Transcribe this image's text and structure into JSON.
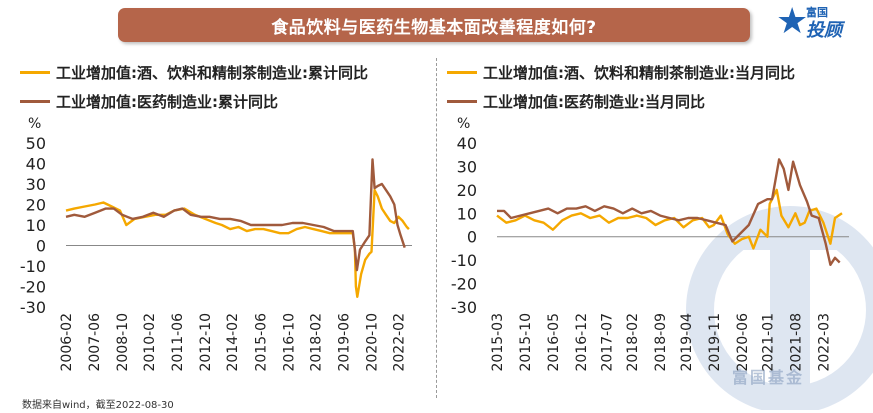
{
  "title": "食品饮料与医药生物基本面改善程度如何?",
  "brand": {
    "top": "富国",
    "main": "投顾",
    "watermark": "富国基金"
  },
  "source": "数据来自wind，截至2022-08-30",
  "colors": {
    "orange": "#f5a800",
    "brown": "#a05a3c",
    "banner": "#b5654a"
  },
  "chart_data": [
    {
      "type": "line",
      "ylabel": "%",
      "ylim": [
        -30,
        50
      ],
      "yticks": [
        -30,
        -20,
        -10,
        0,
        10,
        20,
        30,
        40,
        50
      ],
      "xlim": [
        2006.1,
        2022.75
      ],
      "xticks": [
        {
          "label": "2006-02",
          "pos": 2006.1
        },
        {
          "label": "2007-06",
          "pos": 2007.45
        },
        {
          "label": "2008-10",
          "pos": 2008.8
        },
        {
          "label": "2010-02",
          "pos": 2010.1
        },
        {
          "label": "2011-06",
          "pos": 2011.45
        },
        {
          "label": "2012-10",
          "pos": 2012.8
        },
        {
          "label": "2014-02",
          "pos": 2014.1
        },
        {
          "label": "2015-06",
          "pos": 2015.45
        },
        {
          "label": "2016-10",
          "pos": 2016.8
        },
        {
          "label": "2018-02",
          "pos": 2018.1
        },
        {
          "label": "2019-06",
          "pos": 2019.45
        },
        {
          "label": "2020-10",
          "pos": 2020.8
        },
        {
          "label": "2022-02",
          "pos": 2022.1
        }
      ],
      "series": [
        {
          "name": "工业增加值:酒、饮料和精制茶制造业:累计同比",
          "color": "#f5a800",
          "points": [
            [
              2006.1,
              17
            ],
            [
              2006.5,
              18
            ],
            [
              2007.0,
              19
            ],
            [
              2007.5,
              20
            ],
            [
              2007.9,
              21
            ],
            [
              2008.3,
              19
            ],
            [
              2008.7,
              17
            ],
            [
              2009.0,
              10
            ],
            [
              2009.4,
              13
            ],
            [
              2009.9,
              14
            ],
            [
              2010.4,
              15
            ],
            [
              2010.9,
              15
            ],
            [
              2011.3,
              17
            ],
            [
              2011.8,
              18
            ],
            [
              2012.3,
              15
            ],
            [
              2012.8,
              13
            ],
            [
              2013.3,
              11
            ],
            [
              2013.6,
              10
            ],
            [
              2014.0,
              8
            ],
            [
              2014.4,
              9
            ],
            [
              2014.8,
              7
            ],
            [
              2015.2,
              8
            ],
            [
              2015.6,
              8
            ],
            [
              2016.0,
              7
            ],
            [
              2016.4,
              6
            ],
            [
              2016.8,
              6
            ],
            [
              2017.2,
              8
            ],
            [
              2017.6,
              9
            ],
            [
              2018.0,
              8
            ],
            [
              2018.4,
              7
            ],
            [
              2018.8,
              6
            ],
            [
              2019.2,
              6
            ],
            [
              2019.6,
              6
            ],
            [
              2019.9,
              6
            ],
            [
              2020.0,
              -2
            ],
            [
              2020.05,
              -20
            ],
            [
              2020.12,
              -25
            ],
            [
              2020.3,
              -14
            ],
            [
              2020.5,
              -7
            ],
            [
              2020.7,
              -4
            ],
            [
              2020.8,
              -3
            ],
            [
              2020.95,
              27
            ],
            [
              2021.1,
              24
            ],
            [
              2021.3,
              18
            ],
            [
              2021.5,
              15
            ],
            [
              2021.7,
              12
            ],
            [
              2021.9,
              11
            ],
            [
              2022.1,
              14
            ],
            [
              2022.3,
              12
            ],
            [
              2022.5,
              9
            ],
            [
              2022.6,
              8
            ]
          ]
        },
        {
          "name": "工业增加值:医药制造业:累计同比",
          "color": "#a05a3c",
          "points": [
            [
              2006.1,
              14
            ],
            [
              2006.5,
              15
            ],
            [
              2007.0,
              14
            ],
            [
              2007.5,
              16
            ],
            [
              2008.0,
              18
            ],
            [
              2008.4,
              18
            ],
            [
              2008.8,
              15
            ],
            [
              2009.3,
              13
            ],
            [
              2009.8,
              14
            ],
            [
              2010.3,
              16
            ],
            [
              2010.8,
              14
            ],
            [
              2011.3,
              17
            ],
            [
              2011.7,
              18
            ],
            [
              2012.1,
              15
            ],
            [
              2012.6,
              14
            ],
            [
              2013.0,
              14
            ],
            [
              2013.5,
              13
            ],
            [
              2014.0,
              13
            ],
            [
              2014.5,
              12
            ],
            [
              2015.0,
              10
            ],
            [
              2015.5,
              10
            ],
            [
              2016.0,
              10
            ],
            [
              2016.5,
              10
            ],
            [
              2017.0,
              11
            ],
            [
              2017.5,
              11
            ],
            [
              2018.0,
              10
            ],
            [
              2018.5,
              9
            ],
            [
              2019.0,
              7
            ],
            [
              2019.5,
              7
            ],
            [
              2019.9,
              7
            ],
            [
              2020.0,
              -2
            ],
            [
              2020.1,
              -12
            ],
            [
              2020.25,
              -2
            ],
            [
              2020.5,
              2
            ],
            [
              2020.7,
              5
            ],
            [
              2020.85,
              42
            ],
            [
              2020.95,
              28
            ],
            [
              2021.1,
              29
            ],
            [
              2021.3,
              30
            ],
            [
              2021.5,
              27
            ],
            [
              2021.7,
              24
            ],
            [
              2021.9,
              20
            ],
            [
              2022.05,
              10
            ],
            [
              2022.2,
              5
            ],
            [
              2022.4,
              -1
            ]
          ]
        }
      ]
    },
    {
      "type": "line",
      "ylabel": "%",
      "ylim": [
        -30,
        40
      ],
      "yticks": [
        -30,
        -20,
        -10,
        0,
        10,
        20,
        30,
        40
      ],
      "xlim": [
        2015.2,
        2022.75
      ],
      "xticks": [
        {
          "label": "2015-03",
          "pos": 2015.2
        },
        {
          "label": "2015-10",
          "pos": 2015.8
        },
        {
          "label": "2016-05",
          "pos": 2016.4
        },
        {
          "label": "2016-12",
          "pos": 2017.0
        },
        {
          "label": "2017-07",
          "pos": 2017.55
        },
        {
          "label": "2018-02",
          "pos": 2018.1
        },
        {
          "label": "2018-09",
          "pos": 2018.7
        },
        {
          "label": "2019-04",
          "pos": 2019.25
        },
        {
          "label": "2019-11",
          "pos": 2019.85
        },
        {
          "label": "2020-06",
          "pos": 2020.45
        },
        {
          "label": "2021-01",
          "pos": 2021.0
        },
        {
          "label": "2021-08",
          "pos": 2021.6
        },
        {
          "label": "2022-03",
          "pos": 2022.2
        }
      ],
      "series": [
        {
          "name": "工业增加值:酒、饮料和精制茶制造业:当月同比",
          "color": "#f5a800",
          "points": [
            [
              2015.2,
              9
            ],
            [
              2015.4,
              6
            ],
            [
              2015.6,
              7
            ],
            [
              2015.8,
              9
            ],
            [
              2016.0,
              7
            ],
            [
              2016.2,
              6
            ],
            [
              2016.4,
              3
            ],
            [
              2016.6,
              7
            ],
            [
              2016.8,
              9
            ],
            [
              2017.0,
              10
            ],
            [
              2017.2,
              8
            ],
            [
              2017.4,
              9
            ],
            [
              2017.6,
              6
            ],
            [
              2017.8,
              8
            ],
            [
              2018.0,
              8
            ],
            [
              2018.2,
              9
            ],
            [
              2018.4,
              8
            ],
            [
              2018.6,
              5
            ],
            [
              2018.8,
              7
            ],
            [
              2019.0,
              8
            ],
            [
              2019.2,
              4
            ],
            [
              2019.4,
              7
            ],
            [
              2019.6,
              8
            ],
            [
              2019.75,
              4
            ],
            [
              2019.85,
              5
            ],
            [
              2020.0,
              9
            ],
            [
              2020.15,
              1
            ],
            [
              2020.3,
              -3
            ],
            [
              2020.45,
              -1
            ],
            [
              2020.6,
              0
            ],
            [
              2020.7,
              -5
            ],
            [
              2020.85,
              3
            ],
            [
              2021.0,
              0
            ],
            [
              2021.05,
              14
            ],
            [
              2021.2,
              20
            ],
            [
              2021.3,
              9
            ],
            [
              2021.45,
              4
            ],
            [
              2021.6,
              10
            ],
            [
              2021.7,
              5
            ],
            [
              2021.8,
              6
            ],
            [
              2021.9,
              11
            ],
            [
              2022.05,
              12
            ],
            [
              2022.2,
              6
            ],
            [
              2022.35,
              -3
            ],
            [
              2022.45,
              8
            ],
            [
              2022.6,
              10
            ]
          ]
        },
        {
          "name": "工业增加值:医药制造业:当月同比",
          "color": "#a05a3c",
          "points": [
            [
              2015.2,
              11
            ],
            [
              2015.35,
              11
            ],
            [
              2015.5,
              8
            ],
            [
              2015.7,
              9
            ],
            [
              2015.9,
              10
            ],
            [
              2016.1,
              11
            ],
            [
              2016.3,
              12
            ],
            [
              2016.5,
              10
            ],
            [
              2016.7,
              12
            ],
            [
              2016.9,
              12
            ],
            [
              2017.1,
              13
            ],
            [
              2017.3,
              11
            ],
            [
              2017.5,
              13
            ],
            [
              2017.7,
              12
            ],
            [
              2017.9,
              10
            ],
            [
              2018.1,
              12
            ],
            [
              2018.3,
              10
            ],
            [
              2018.5,
              11
            ],
            [
              2018.7,
              9
            ],
            [
              2018.9,
              8
            ],
            [
              2019.1,
              7
            ],
            [
              2019.3,
              8
            ],
            [
              2019.5,
              8
            ],
            [
              2019.7,
              7
            ],
            [
              2019.9,
              6
            ],
            [
              2020.1,
              5
            ],
            [
              2020.25,
              -2
            ],
            [
              2020.45,
              2
            ],
            [
              2020.6,
              5
            ],
            [
              2020.8,
              14
            ],
            [
              2021.0,
              16
            ],
            [
              2021.1,
              16
            ],
            [
              2021.25,
              33
            ],
            [
              2021.35,
              29
            ],
            [
              2021.45,
              20
            ],
            [
              2021.55,
              32
            ],
            [
              2021.7,
              22
            ],
            [
              2021.85,
              15
            ],
            [
              2021.95,
              9
            ],
            [
              2022.1,
              8
            ],
            [
              2022.25,
              -3
            ],
            [
              2022.35,
              -12
            ],
            [
              2022.45,
              -9
            ],
            [
              2022.55,
              -11
            ]
          ]
        }
      ]
    }
  ]
}
